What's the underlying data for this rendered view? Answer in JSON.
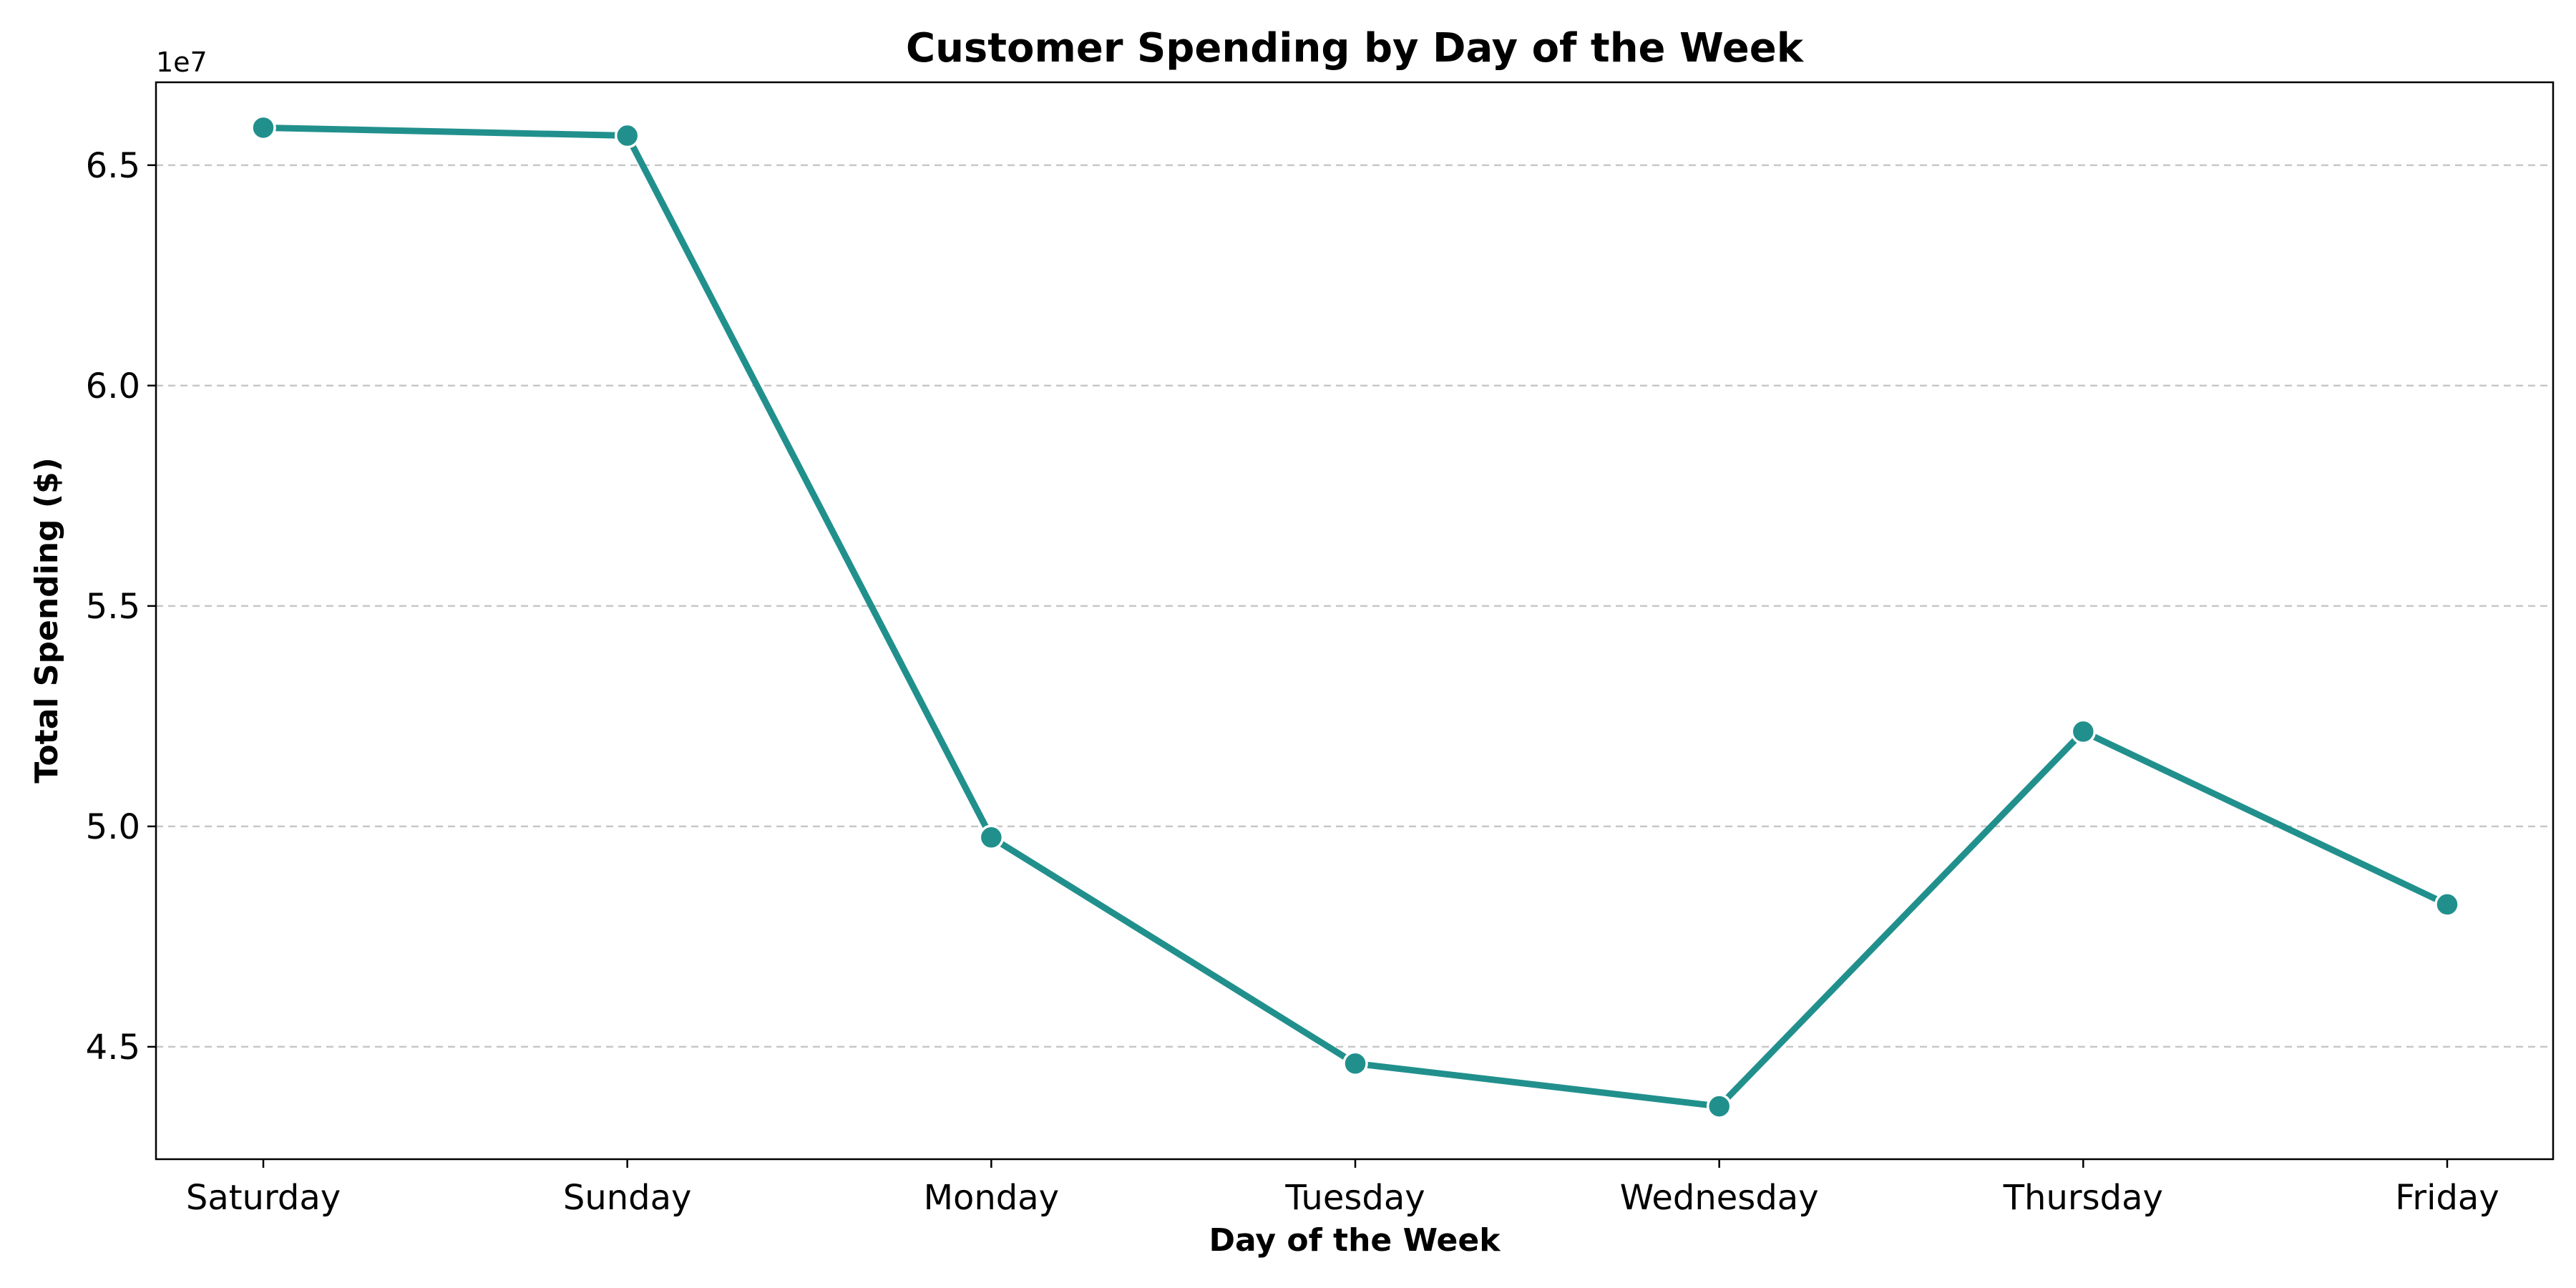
{
  "chart_data": {
    "type": "line",
    "title": "Customer Spending by Day of the Week",
    "xlabel": "Day of the Week",
    "ylabel": "Total Spending ($)",
    "y_offset_label": "1e7",
    "y_scale_factor": 10000000,
    "categories": [
      "Saturday",
      "Sunday",
      "Monday",
      "Tuesday",
      "Wednesday",
      "Thursday",
      "Friday"
    ],
    "series": [
      {
        "values": [
          65850000,
          65670000,
          49750000,
          44620000,
          43650000,
          52150000,
          48230000
        ],
        "color": "#21908d"
      }
    ],
    "ylim": [
      42450000,
      66880000
    ],
    "yticks": [
      45000000,
      50000000,
      55000000,
      60000000,
      65000000
    ],
    "ytick_labels": [
      "4.5",
      "5.0",
      "5.5",
      "6.0",
      "6.5"
    ],
    "grid": "y-dashed",
    "legend": "none"
  }
}
